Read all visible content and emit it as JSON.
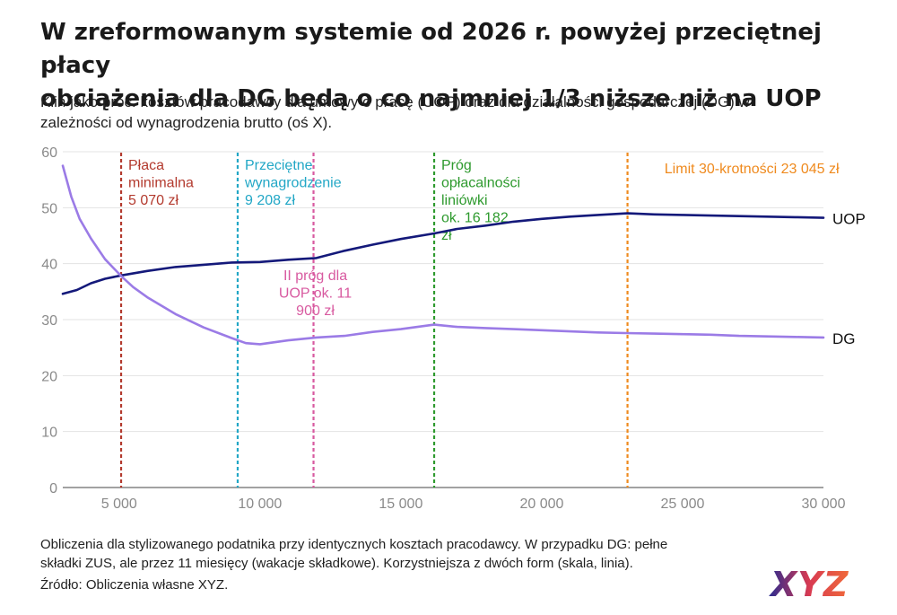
{
  "title_line1": "W zreformowanym systemie od 2026 r. powyżej przeciętnej płacy",
  "title_line2": "obciążenia dla DG będą o co najmniej 1/3 niższe niż na UOP",
  "subtitle_line1": "Klin jako proc. kosztów pracodawcy dla umowy o pracę (UOP) oraz dla działalności gospodarczej (DG) w",
  "subtitle_line2": "zależności od wynagrodzenia brutto (oś X).",
  "note_line1": "Obliczenia dla stylizowanego podatnika przy identycznych kosztach pracodawcy. W przypadku DG: pełne",
  "note_line2": "składki ZUS, ale przez 11 miesięcy (wakacje składkowe). Korzystniejsza z dwóch form (skala, linia).",
  "source": "Źródło: Obliczenia własne XYZ.",
  "logo_text": "XYZ",
  "colors": {
    "uop": "#14197a",
    "dg": "#9b7be6",
    "grid": "#e3e3e3",
    "axis": "#555555"
  },
  "chart_data": {
    "type": "line",
    "xlim": [
      3000,
      30000
    ],
    "ylim": [
      0,
      60
    ],
    "x_ticks": [
      5000,
      10000,
      15000,
      20000,
      25000,
      30000
    ],
    "x_tick_labels": [
      "5 000",
      "10 000",
      "15 000",
      "20 000",
      "25 000",
      "30 000"
    ],
    "y_ticks": [
      0,
      10,
      20,
      30,
      40,
      50,
      60
    ],
    "y_tick_labels": [
      "0",
      "10",
      "20",
      "30",
      "40",
      "50",
      "60"
    ],
    "grid": "horizontal",
    "series": [
      {
        "name": "UOP",
        "color": "#14197a",
        "x": [
          3000,
          3500,
          4000,
          4500,
          5070,
          6000,
          7000,
          8000,
          9000,
          10000,
          11000,
          12000,
          13000,
          14000,
          15000,
          16182,
          17000,
          18000,
          19000,
          20000,
          21000,
          22000,
          23045,
          24000,
          25000,
          26000,
          27000,
          28000,
          29000,
          30000
        ],
        "y": [
          34.6,
          35.3,
          36.5,
          37.3,
          37.9,
          38.7,
          39.4,
          39.8,
          40.2,
          40.3,
          40.7,
          41.0,
          42.3,
          43.4,
          44.4,
          45.4,
          46.2,
          46.8,
          47.5,
          48.0,
          48.4,
          48.7,
          49.0,
          48.8,
          48.7,
          48.6,
          48.5,
          48.4,
          48.3,
          48.2
        ]
      },
      {
        "name": "DG",
        "color": "#9b7be6",
        "x": [
          3000,
          3300,
          3600,
          4000,
          4500,
          5070,
          5500,
          6000,
          7000,
          8000,
          9000,
          9500,
          10000,
          11000,
          12000,
          13000,
          14000,
          15000,
          16182,
          17000,
          18000,
          19000,
          20000,
          21000,
          22000,
          23000,
          24000,
          25000,
          26000,
          27000,
          28000,
          29000,
          30000
        ],
        "y": [
          57.5,
          52.0,
          48.0,
          44.5,
          40.8,
          37.8,
          35.8,
          34.0,
          31.0,
          28.6,
          26.7,
          25.8,
          25.6,
          26.3,
          26.8,
          27.1,
          27.8,
          28.3,
          29.1,
          28.7,
          28.5,
          28.3,
          28.1,
          27.9,
          27.7,
          27.6,
          27.5,
          27.4,
          27.3,
          27.1,
          27.0,
          26.9,
          26.8
        ]
      }
    ],
    "vlines": [
      {
        "x": 5070,
        "color": "#b33a2e",
        "lines": [
          "Płaca",
          "minimalna",
          "5 070 zł"
        ],
        "align": "start"
      },
      {
        "x": 9208,
        "color": "#22a7c6",
        "lines": [
          "Przeciętne",
          "wynagrodzenie",
          "9 208 zł"
        ],
        "align": "start"
      },
      {
        "x": 11900,
        "color": "#d85aa0",
        "lines": [
          "II próg dla",
          "UOP ok. 11",
          "900 zł"
        ],
        "align": "middle"
      },
      {
        "x": 16182,
        "color": "#2e9a2e",
        "lines": [
          "Próg",
          "opłacalności",
          "liniówki",
          "ok. 16 182",
          "zł"
        ],
        "align": "start"
      },
      {
        "x": 23045,
        "color": "#ef8a1e",
        "lines": [
          "Limit 30-krotności 23 045 zł"
        ],
        "align": "end"
      }
    ]
  }
}
